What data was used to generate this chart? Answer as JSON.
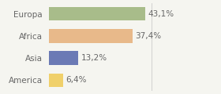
{
  "categories": [
    "Europa",
    "Africa",
    "Asia",
    "America"
  ],
  "values": [
    43.1,
    37.4,
    13.2,
    6.4
  ],
  "labels": [
    "43,1%",
    "37,4%",
    "13,2%",
    "6,4%"
  ],
  "colors": [
    "#a8bc8a",
    "#e8b98a",
    "#6b7ab5",
    "#f0d06a"
  ],
  "xlim": [
    0,
    75
  ],
  "background_color": "#f5f5f0",
  "bar_height": 0.62,
  "label_fontsize": 7.5,
  "category_fontsize": 7.5,
  "label_color": "#666666",
  "figsize": [
    2.8,
    1.2
  ],
  "dpi": 100
}
